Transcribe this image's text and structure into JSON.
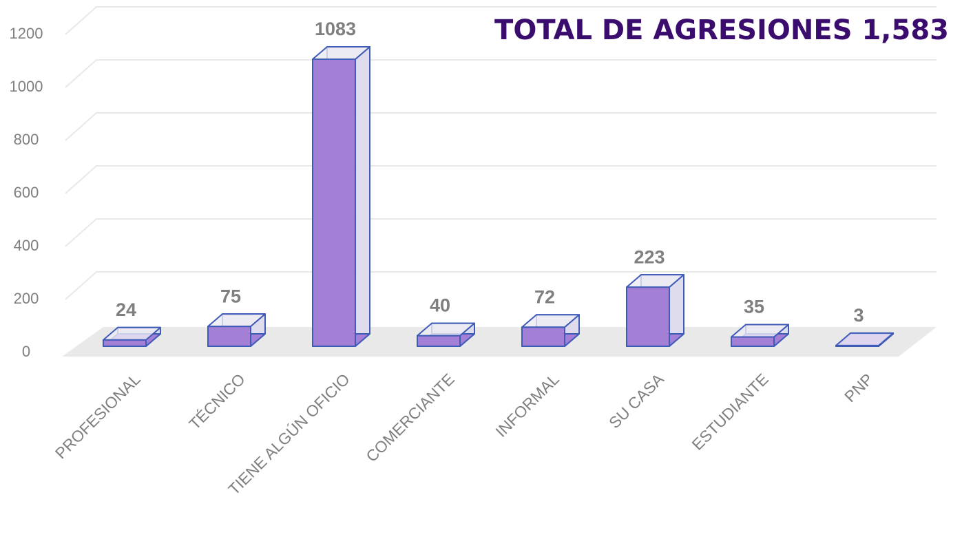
{
  "chart_data": {
    "type": "bar3d",
    "title": "TOTAL DE AGRESIONES  1,583",
    "categories": [
      "PROFESIONAL",
      "TÉCNICO",
      "TIENE ALGÚN OFICIO",
      "COMERCIANTE",
      "INFORMAL",
      "SU CASA",
      "ESTUDIANTE",
      "PNP"
    ],
    "values": [
      24,
      75,
      1083,
      40,
      72,
      223,
      35,
      3
    ],
    "color": "#a47fd6",
    "edge_color": "#3f5bb8",
    "ylim": [
      0,
      1200
    ],
    "yticks": [
      0,
      200,
      400,
      600,
      800,
      1000,
      1200
    ],
    "grid": true
  }
}
